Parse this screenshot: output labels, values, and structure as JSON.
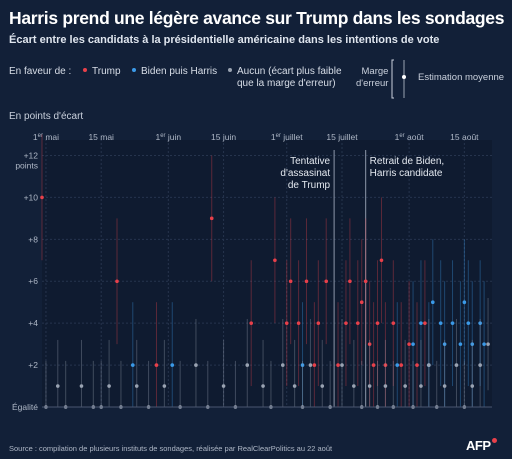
{
  "header": {
    "title": "Harris prend une légère avance sur Trump dans les sondages",
    "subtitle": "Écart entre les candidats à la présidentielle américaine dans les intentions de vote"
  },
  "legend": {
    "label": "En faveur de :",
    "trump": "Trump",
    "biden_harris": "Biden puis Harris",
    "aucun_line1": "Aucun (écart plus faible",
    "aucun_line2": "que la marge d'erreur)",
    "marge_line1": "Marge",
    "marge_line2": "d'erreur",
    "estimation": "Estimation moyenne"
  },
  "colors": {
    "trump": "#e8404a",
    "harris": "#3b9ae8",
    "aucun": "#9aa3b2",
    "background": "#122038"
  },
  "yaxis_unit": "En points d'écart",
  "source": "Source : compilation de plusieurs instituts de sondages, réalisée par RealClearPolitics au 22 août",
  "logo": "AFP",
  "chart_data": {
    "type": "scatter",
    "ylabel": "En points d'écart",
    "ylim": [
      0,
      12.5
    ],
    "yticks": [
      {
        "value": 12,
        "label": "+12"
      },
      {
        "value": 10,
        "label": "+10"
      },
      {
        "value": 8,
        "label": "+8"
      },
      {
        "value": 6,
        "label": "+6"
      },
      {
        "value": 4,
        "label": "+4"
      },
      {
        "value": 2,
        "label": "+2"
      },
      {
        "value": 0,
        "label": "Égalité"
      }
    ],
    "ytick_unit_label": "points",
    "xlim": [
      "2024-04-30",
      "2024-08-22"
    ],
    "xticks": [
      {
        "date": "2024-05-01",
        "label_main": "1",
        "label_sup": "er",
        "label_month": " mai"
      },
      {
        "date": "2024-05-15",
        "label_main": "15 mai",
        "label_sup": "",
        "label_month": ""
      },
      {
        "date": "2024-06-01",
        "label_main": "1",
        "label_sup": "er",
        "label_month": " juin"
      },
      {
        "date": "2024-06-15",
        "label_main": "15 juin",
        "label_sup": "",
        "label_month": ""
      },
      {
        "date": "2024-07-01",
        "label_main": "1",
        "label_sup": "er",
        "label_month": " juillet"
      },
      {
        "date": "2024-07-15",
        "label_main": "15 juillet",
        "label_sup": "",
        "label_month": ""
      },
      {
        "date": "2024-08-01",
        "label_main": "1",
        "label_sup": "er",
        "label_month": " août"
      },
      {
        "date": "2024-08-15",
        "label_main": "15 août",
        "label_sup": "",
        "label_month": ""
      }
    ],
    "annotations": [
      {
        "date": "2024-07-13",
        "lines": [
          "Tentative",
          "d'assasinat",
          "de Trump"
        ],
        "align": "right"
      },
      {
        "date": "2024-07-21",
        "lines": [
          "Retrait de Biden,",
          "Harris candidate"
        ],
        "align": "left"
      }
    ],
    "series": [
      {
        "name": "Trump",
        "key": "trump",
        "points": [
          {
            "date": "2024-04-30",
            "y": 10
          },
          {
            "date": "2024-05-19",
            "y": 6
          },
          {
            "date": "2024-05-29",
            "y": 2
          },
          {
            "date": "2024-06-12",
            "y": 9
          },
          {
            "date": "2024-06-22",
            "y": 4
          },
          {
            "date": "2024-06-28",
            "y": 7
          },
          {
            "date": "2024-07-01",
            "y": 4
          },
          {
            "date": "2024-07-02",
            "y": 6
          },
          {
            "date": "2024-07-04",
            "y": 4
          },
          {
            "date": "2024-07-06",
            "y": 6
          },
          {
            "date": "2024-07-08",
            "y": 2
          },
          {
            "date": "2024-07-09",
            "y": 4
          },
          {
            "date": "2024-07-11",
            "y": 6
          },
          {
            "date": "2024-07-14",
            "y": 2
          },
          {
            "date": "2024-07-16",
            "y": 4
          },
          {
            "date": "2024-07-17",
            "y": 6
          },
          {
            "date": "2024-07-19",
            "y": 4
          },
          {
            "date": "2024-07-20",
            "y": 5
          },
          {
            "date": "2024-07-21",
            "y": 6
          },
          {
            "date": "2024-07-22",
            "y": 3
          },
          {
            "date": "2024-07-23",
            "y": 2
          },
          {
            "date": "2024-07-24",
            "y": 4
          },
          {
            "date": "2024-07-25",
            "y": 7
          },
          {
            "date": "2024-07-26",
            "y": 2
          },
          {
            "date": "2024-07-28",
            "y": 4
          },
          {
            "date": "2024-07-30",
            "y": 2
          },
          {
            "date": "2024-08-01",
            "y": 3
          },
          {
            "date": "2024-08-03",
            "y": 2
          },
          {
            "date": "2024-08-05",
            "y": 4
          }
        ]
      },
      {
        "name": "Biden puis Harris",
        "key": "harris",
        "points": [
          {
            "date": "2024-05-23",
            "y": 2
          },
          {
            "date": "2024-06-02",
            "y": 2
          },
          {
            "date": "2024-07-05",
            "y": 2
          },
          {
            "date": "2024-07-29",
            "y": 2
          },
          {
            "date": "2024-08-02",
            "y": 3
          },
          {
            "date": "2024-08-04",
            "y": 4
          },
          {
            "date": "2024-08-06",
            "y": 2
          },
          {
            "date": "2024-08-07",
            "y": 5
          },
          {
            "date": "2024-08-09",
            "y": 4
          },
          {
            "date": "2024-08-10",
            "y": 3
          },
          {
            "date": "2024-08-12",
            "y": 4
          },
          {
            "date": "2024-08-14",
            "y": 3
          },
          {
            "date": "2024-08-15",
            "y": 5
          },
          {
            "date": "2024-08-16",
            "y": 4
          },
          {
            "date": "2024-08-17",
            "y": 3
          },
          {
            "date": "2024-08-19",
            "y": 4
          },
          {
            "date": "2024-08-20",
            "y": 3
          }
        ]
      },
      {
        "name": "Aucun",
        "key": "aucun",
        "points": [
          {
            "date": "2024-05-01",
            "y": 0
          },
          {
            "date": "2024-05-04",
            "y": 1
          },
          {
            "date": "2024-05-06",
            "y": 0
          },
          {
            "date": "2024-05-10",
            "y": 1
          },
          {
            "date": "2024-05-13",
            "y": 0
          },
          {
            "date": "2024-05-15",
            "y": 0
          },
          {
            "date": "2024-05-17",
            "y": 1
          },
          {
            "date": "2024-05-20",
            "y": 0
          },
          {
            "date": "2024-05-24",
            "y": 1
          },
          {
            "date": "2024-05-27",
            "y": 0
          },
          {
            "date": "2024-05-31",
            "y": 1
          },
          {
            "date": "2024-06-04",
            "y": 0
          },
          {
            "date": "2024-06-08",
            "y": 2
          },
          {
            "date": "2024-06-11",
            "y": 0
          },
          {
            "date": "2024-06-15",
            "y": 1
          },
          {
            "date": "2024-06-18",
            "y": 0
          },
          {
            "date": "2024-06-21",
            "y": 2
          },
          {
            "date": "2024-06-25",
            "y": 1
          },
          {
            "date": "2024-06-27",
            "y": 0
          },
          {
            "date": "2024-06-30",
            "y": 2
          },
          {
            "date": "2024-07-03",
            "y": 1
          },
          {
            "date": "2024-07-05",
            "y": 0
          },
          {
            "date": "2024-07-07",
            "y": 2
          },
          {
            "date": "2024-07-10",
            "y": 1
          },
          {
            "date": "2024-07-12",
            "y": 0
          },
          {
            "date": "2024-07-15",
            "y": 2
          },
          {
            "date": "2024-07-18",
            "y": 1
          },
          {
            "date": "2024-07-20",
            "y": 0
          },
          {
            "date": "2024-07-22",
            "y": 1
          },
          {
            "date": "2024-07-24",
            "y": 0
          },
          {
            "date": "2024-07-26",
            "y": 1
          },
          {
            "date": "2024-07-28",
            "y": 0
          },
          {
            "date": "2024-07-31",
            "y": 1
          },
          {
            "date": "2024-08-02",
            "y": 0
          },
          {
            "date": "2024-08-04",
            "y": 1
          },
          {
            "date": "2024-08-06",
            "y": 2
          },
          {
            "date": "2024-08-08",
            "y": 0
          },
          {
            "date": "2024-08-10",
            "y": 1
          },
          {
            "date": "2024-08-13",
            "y": 2
          },
          {
            "date": "2024-08-15",
            "y": 0
          },
          {
            "date": "2024-08-17",
            "y": 1
          },
          {
            "date": "2024-08-19",
            "y": 2
          },
          {
            "date": "2024-08-21",
            "y": 3
          }
        ]
      }
    ]
  }
}
